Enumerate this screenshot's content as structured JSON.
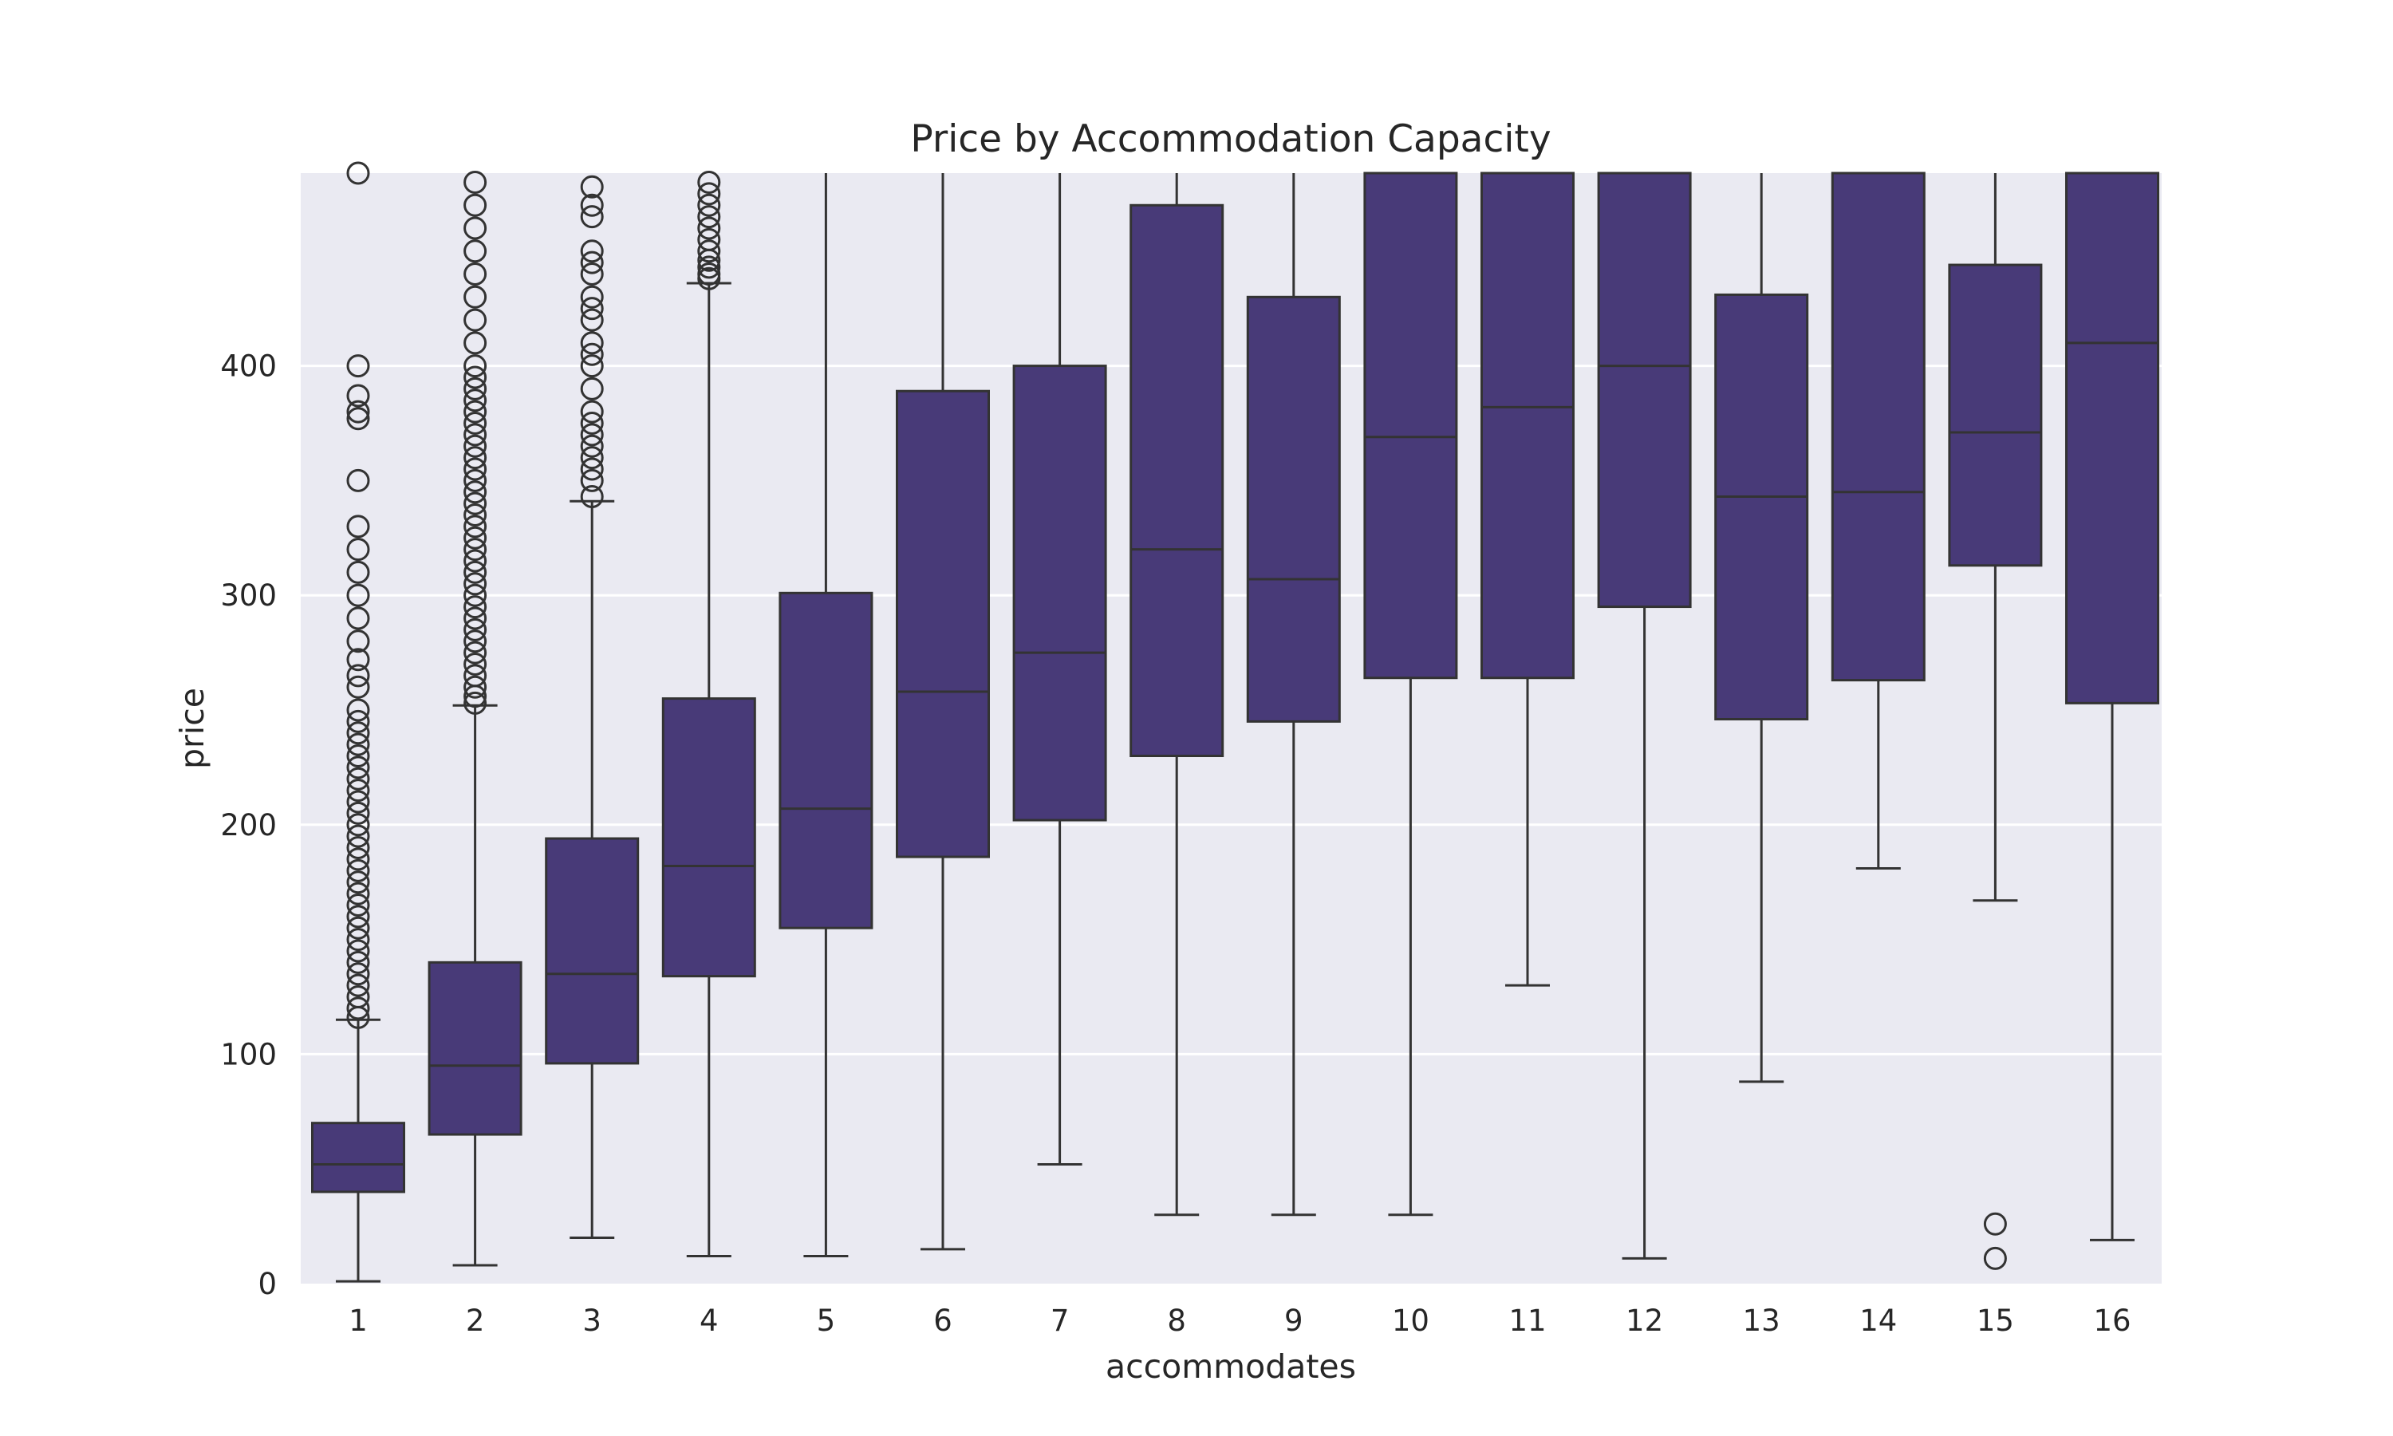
{
  "chart_data": {
    "type": "box",
    "title": "Price by Accommodation Capacity",
    "xlabel": "accommodates",
    "ylabel": "price",
    "ylim": [
      0,
      484
    ],
    "yticks": [
      0,
      100,
      200,
      300,
      400
    ],
    "grid": true,
    "box_color": "#483a78",
    "line_color": "#333333",
    "background_color": "#eaeaf2",
    "categories": [
      "1",
      "2",
      "3",
      "4",
      "5",
      "6",
      "7",
      "8",
      "9",
      "10",
      "11",
      "12",
      "13",
      "14",
      "15",
      "16"
    ],
    "boxes": [
      {
        "category": "1",
        "whisker_low": 1,
        "q1": 40,
        "median": 52,
        "q3": 70,
        "whisker_high": 115,
        "outliers": [
          116,
          120,
          125,
          130,
          135,
          140,
          145,
          150,
          155,
          160,
          165,
          170,
          175,
          180,
          185,
          190,
          195,
          200,
          205,
          210,
          215,
          220,
          225,
          230,
          235,
          240,
          245,
          250,
          260,
          265,
          272,
          280,
          290,
          300,
          310,
          320,
          330,
          350,
          377,
          380,
          387,
          400,
          484
        ]
      },
      {
        "category": "2",
        "whisker_low": 8,
        "q1": 65,
        "median": 95,
        "q3": 140,
        "whisker_high": 252,
        "outliers": [
          253,
          256,
          260,
          265,
          270,
          275,
          280,
          285,
          290,
          295,
          300,
          305,
          310,
          315,
          320,
          325,
          330,
          335,
          340,
          345,
          350,
          355,
          360,
          365,
          370,
          375,
          380,
          385,
          390,
          395,
          400,
          410,
          420,
          430,
          440,
          450,
          460,
          470,
          480
        ]
      },
      {
        "category": "3",
        "whisker_low": 20,
        "q1": 96,
        "median": 135,
        "q3": 194,
        "whisker_high": 341,
        "outliers": [
          343,
          350,
          355,
          360,
          365,
          370,
          375,
          380,
          390,
          400,
          405,
          410,
          420,
          425,
          430,
          440,
          445,
          450,
          465,
          470,
          478
        ]
      },
      {
        "category": "4",
        "whisker_low": 12,
        "q1": 134,
        "median": 182,
        "q3": 255,
        "whisker_high": 436,
        "outliers": [
          438,
          440,
          443,
          446,
          450,
          455,
          460,
          465,
          470,
          475,
          480
        ]
      },
      {
        "category": "5",
        "whisker_low": 12,
        "q1": 155,
        "median": 207,
        "q3": 301,
        "whisker_high": 484,
        "outliers": []
      },
      {
        "category": "6",
        "whisker_low": 15,
        "q1": 186,
        "median": 258,
        "q3": 389,
        "whisker_high": 484,
        "outliers": []
      },
      {
        "category": "7",
        "whisker_low": 52,
        "q1": 202,
        "median": 275,
        "q3": 400,
        "whisker_high": 484,
        "outliers": []
      },
      {
        "category": "8",
        "whisker_low": 30,
        "q1": 230,
        "median": 320,
        "q3": 470,
        "whisker_high": 484,
        "outliers": []
      },
      {
        "category": "9",
        "whisker_low": 30,
        "q1": 245,
        "median": 307,
        "q3": 430,
        "whisker_high": 484,
        "outliers": []
      },
      {
        "category": "10",
        "whisker_low": 30,
        "q1": 264,
        "median": 369,
        "q3": 484,
        "whisker_high": 484,
        "outliers": []
      },
      {
        "category": "11",
        "whisker_low": 130,
        "q1": 264,
        "median": 382,
        "q3": 484,
        "whisker_high": 484,
        "outliers": []
      },
      {
        "category": "12",
        "whisker_low": 11,
        "q1": 295,
        "median": 400,
        "q3": 484,
        "whisker_high": 484,
        "outliers": []
      },
      {
        "category": "13",
        "whisker_low": 88,
        "q1": 246,
        "median": 343,
        "q3": 431,
        "whisker_high": 484,
        "outliers": []
      },
      {
        "category": "14",
        "whisker_low": 181,
        "q1": 263,
        "median": 345,
        "q3": 484,
        "whisker_high": 484,
        "outliers": []
      },
      {
        "category": "15",
        "whisker_low": 167,
        "q1": 313,
        "median": 371,
        "q3": 444,
        "whisker_high": 484,
        "outliers": [
          11,
          26
        ]
      },
      {
        "category": "16",
        "whisker_low": 19,
        "q1": 253,
        "median": 410,
        "q3": 484,
        "whisker_high": 484,
        "outliers": []
      }
    ]
  }
}
